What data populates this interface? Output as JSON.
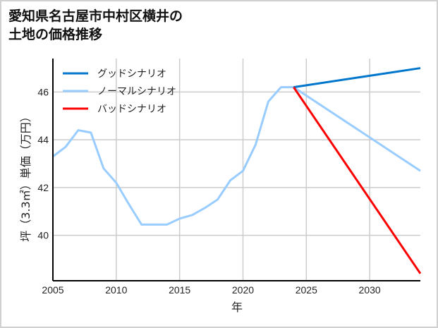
{
  "chart_data": {
    "type": "line",
    "title": "愛知県名古屋市中村区横井の\n土地の価格推移",
    "xlabel": "年",
    "ylabel": "坪（3.3㎡）単価（万円）",
    "xlim": [
      2005,
      2034
    ],
    "ylim": [
      38.1,
      47.4
    ],
    "xticks": [
      2005,
      2010,
      2015,
      2020,
      2025,
      2030
    ],
    "yticks": [
      40,
      42,
      44,
      46
    ],
    "grid": true,
    "legend_position": "top-left",
    "series": [
      {
        "name": "グッドシナリオ",
        "color": "#0077cc",
        "x": [
          2024,
          2034
        ],
        "values": [
          46.2,
          47.0
        ]
      },
      {
        "name": "ノーマルシナリオ",
        "color": "#99ccff",
        "x": [
          2005,
          2006,
          2007,
          2008,
          2009,
          2010,
          2011,
          2012,
          2013,
          2014,
          2015,
          2016,
          2017,
          2018,
          2019,
          2020,
          2021,
          2022,
          2023,
          2024,
          2034
        ],
        "values": [
          43.3,
          43.7,
          44.4,
          44.3,
          42.8,
          42.2,
          41.3,
          40.45,
          40.45,
          40.45,
          40.7,
          40.85,
          41.15,
          41.5,
          42.3,
          42.7,
          43.8,
          45.6,
          46.2,
          46.2,
          42.7
        ]
      },
      {
        "name": "バッドシナリオ",
        "color": "#ff0000",
        "x": [
          2024,
          2034
        ],
        "values": [
          46.2,
          38.4
        ]
      }
    ]
  }
}
